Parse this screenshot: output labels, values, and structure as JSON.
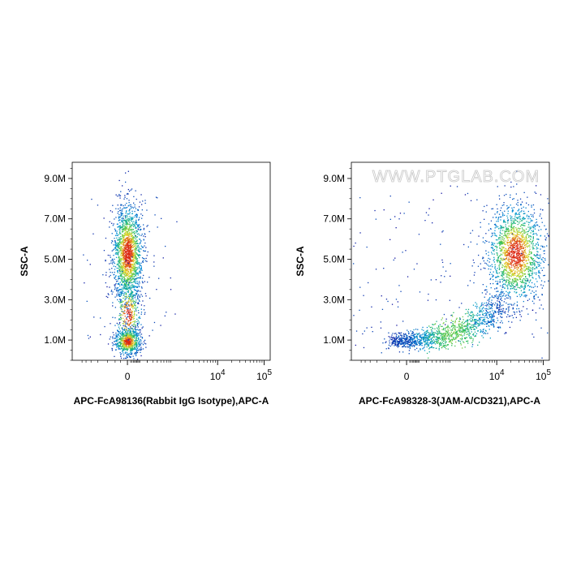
{
  "chart_data": [
    {
      "type": "scatter",
      "subtype": "flow-cytometry-density-dot-plot",
      "xlabel": "APC-FcA98136(Rabbit IgG Isotype),APC-A",
      "ylabel": "SSC-A",
      "x_scale": "biexponential",
      "y_ticks": [
        "1.0M",
        "3.0M",
        "5.0M",
        "7.0M",
        "9.0M"
      ],
      "y_tick_values": [
        1000000,
        3000000,
        5000000,
        7000000,
        9000000
      ],
      "ylim": [
        0,
        9800000
      ],
      "x_ticks": [
        {
          "base": "0",
          "exp": ""
        },
        {
          "base": "10",
          "exp": "4"
        },
        {
          "base": "10",
          "exp": "5"
        }
      ],
      "x_tick_values": [
        0,
        10000,
        100000
      ],
      "grid": false,
      "populations": [
        {
          "x_center": 0,
          "y_center": 5300000,
          "y_spread": 1100000,
          "x_spread": "narrow",
          "density": "high"
        },
        {
          "x_center": 0,
          "y_center": 2300000,
          "y_spread": 700000,
          "x_spread": "narrow",
          "density": "low"
        },
        {
          "x_center": 0,
          "y_center": 950000,
          "y_spread": 300000,
          "x_spread": "narrow",
          "density": "high"
        }
      ],
      "watermark": ""
    },
    {
      "type": "scatter",
      "subtype": "flow-cytometry-density-dot-plot",
      "xlabel": "APC-FcA98328-3(JAM-A/CD321),APC-A",
      "ylabel": "SSC-A",
      "x_scale": "biexponential",
      "y_ticks": [
        "1.0M",
        "3.0M",
        "5.0M",
        "7.0M",
        "9.0M"
      ],
      "y_tick_values": [
        1000000,
        3000000,
        5000000,
        7000000,
        9000000
      ],
      "ylim": [
        0,
        9800000
      ],
      "x_ticks": [
        {
          "base": "0",
          "exp": ""
        },
        {
          "base": "10",
          "exp": "4"
        },
        {
          "base": "10",
          "exp": "5"
        }
      ],
      "x_tick_values": [
        0,
        10000,
        100000
      ],
      "grid": false,
      "populations": [
        {
          "x_center": 25000,
          "y_center": 5300000,
          "y_spread": 1100000,
          "x_spread": "moderate",
          "density": "high"
        },
        {
          "x_from": 1000,
          "x_to": 35000,
          "y_from": 800000,
          "y_to": 3000000,
          "shape": "curved-tail",
          "density": "medium"
        }
      ],
      "watermark": "WWW.PTGLAB.COM"
    }
  ]
}
